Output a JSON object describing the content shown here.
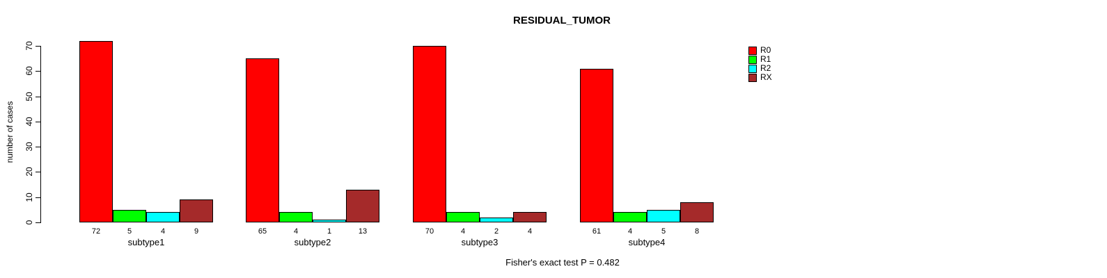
{
  "title": "RESIDUAL_TUMOR",
  "footer": "Fisher's exact test P = 0.482",
  "colors": {
    "R0": "#FF0000",
    "R1": "#00FF00",
    "R2": "#00FFFF",
    "RX": "#A52A2A",
    "axis": "#000000",
    "background": "#FFFFFF"
  },
  "legend": {
    "position": "top-right",
    "entries": [
      {
        "label": "R0",
        "color": "#FF0000"
      },
      {
        "label": "R1",
        "color": "#00FF00"
      },
      {
        "label": "R2",
        "color": "#00FFFF"
      },
      {
        "label": "RX",
        "color": "#A52A2A"
      }
    ]
  },
  "chart_data": {
    "type": "bar",
    "title": "RESIDUAL_TUMOR",
    "xlabel": "",
    "ylabel": "number of cases",
    "ylim": [
      0,
      70
    ],
    "yticks": [
      0,
      10,
      20,
      30,
      40,
      50,
      60,
      70
    ],
    "grid": false,
    "legend_position": "top-right",
    "categories": [
      "subtype1",
      "subtype2",
      "subtype3",
      "subtype4"
    ],
    "series": [
      {
        "name": "R0",
        "color": "#FF0000",
        "values": [
          72,
          65,
          70,
          61
        ]
      },
      {
        "name": "R1",
        "color": "#00FF00",
        "values": [
          5,
          4,
          4,
          4
        ]
      },
      {
        "name": "R2",
        "color": "#00FFFF",
        "values": [
          4,
          1,
          2,
          5
        ]
      },
      {
        "name": "RX",
        "color": "#A52A2A",
        "values": [
          9,
          13,
          4,
          8
        ]
      }
    ],
    "bar_value_labels": [
      [
        "72",
        "5",
        "4",
        "9"
      ],
      [
        "65",
        "4",
        "1",
        "13"
      ],
      [
        "70",
        "4",
        "2",
        "4"
      ],
      [
        "61",
        "4",
        "5",
        "8"
      ]
    ],
    "annotation": "Fisher's exact test P = 0.482"
  }
}
